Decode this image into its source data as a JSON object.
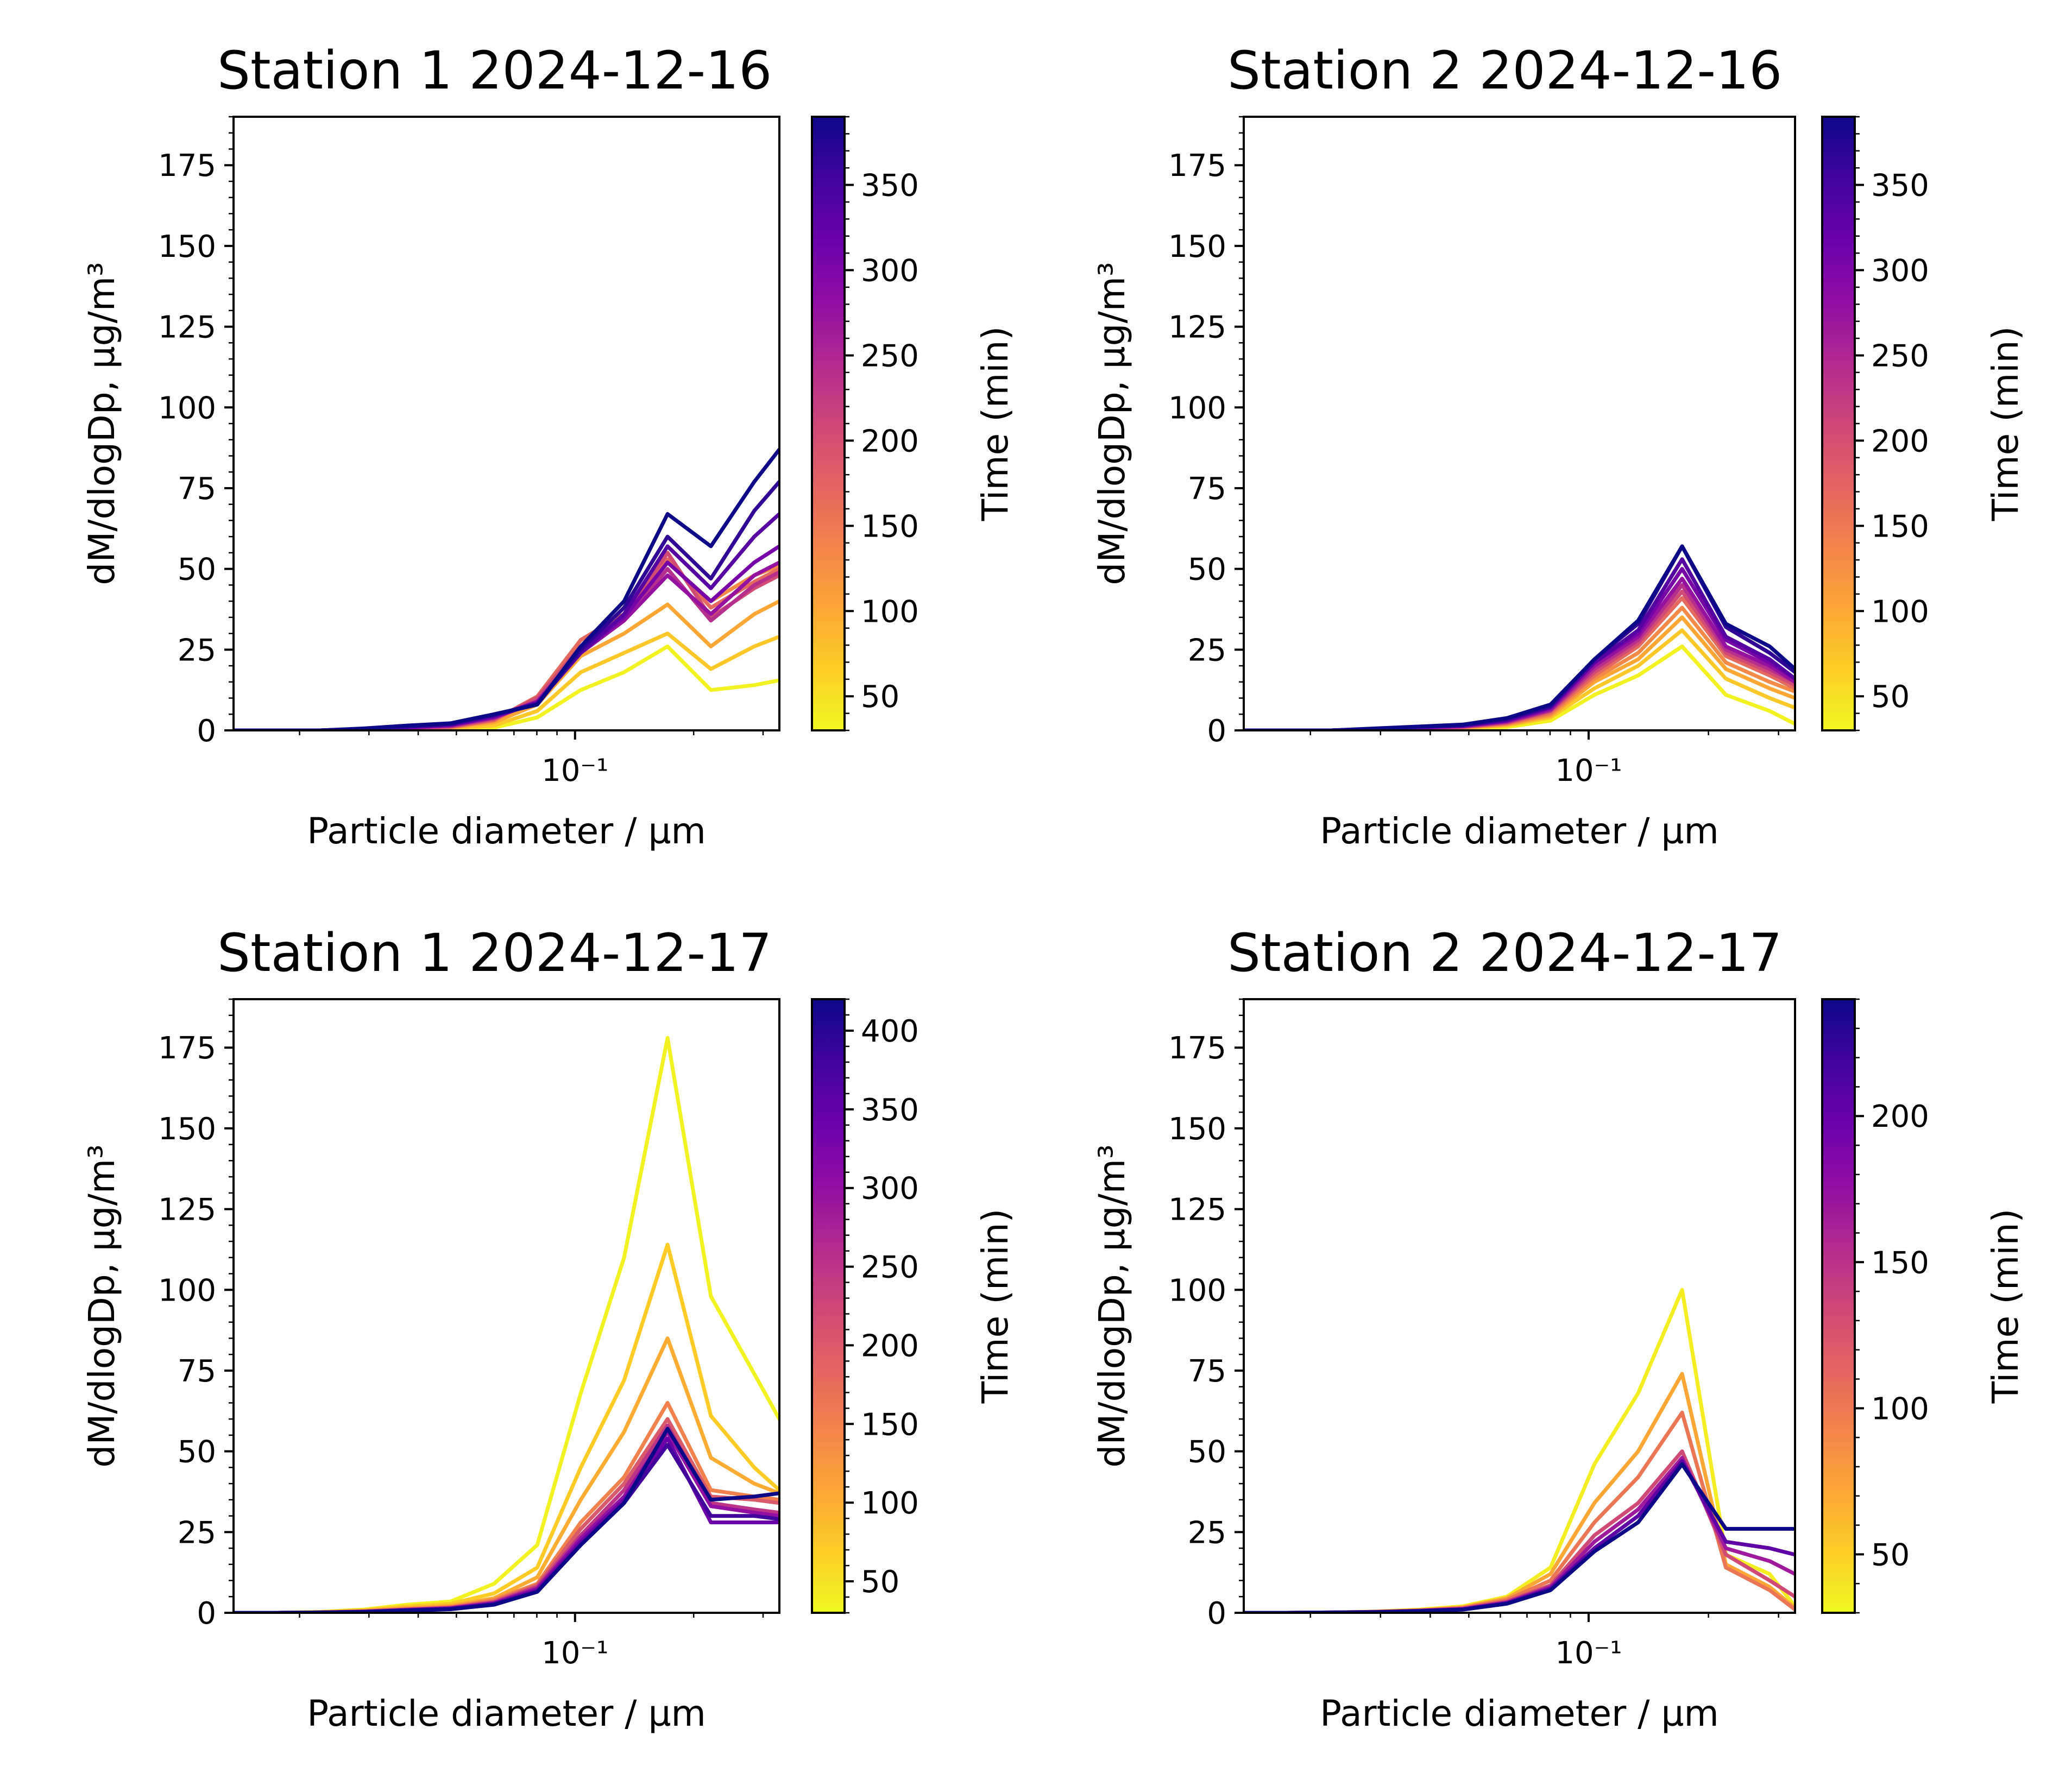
{
  "chart_data": [
    {
      "type": "line",
      "title": "Station 1 2024-12-16",
      "xlabel": "Particle diameter / µm",
      "ylabel": "dM/dlogDp, µg/m³",
      "xscale": "log",
      "xlim": [
        0.0136,
        0.33
      ],
      "ylim": [
        0,
        190
      ],
      "yticks": [
        0,
        25,
        50,
        75,
        100,
        125,
        150,
        175
      ],
      "xtick_label": "10⁻¹",
      "colorbar": {
        "label": "Time (min)",
        "cmap": "plasma_r",
        "range": [
          30,
          390
        ],
        "ticks": [
          50,
          100,
          150,
          200,
          250,
          300,
          350
        ]
      },
      "x": [
        0.0136,
        0.0175,
        0.0226,
        0.0291,
        0.0375,
        0.0483,
        0.0623,
        0.0802,
        0.1034,
        0.1332,
        0.1717,
        0.2212,
        0.285,
        0.33
      ],
      "series": [
        {
          "time": 36,
          "values": [
            0,
            0,
            0,
            0.1,
            0.2,
            0.3,
            0.8,
            4,
            12.5,
            18,
            26,
            12.5,
            14,
            15.5
          ]
        },
        {
          "time": 72,
          "values": [
            0,
            0,
            0,
            0.1,
            0.3,
            0.5,
            1.5,
            6,
            18,
            24,
            30,
            19,
            26,
            29
          ]
        },
        {
          "time": 102,
          "values": [
            0,
            0,
            0,
            0.2,
            0.4,
            0.8,
            2.5,
            8,
            23,
            30,
            39,
            26,
            36,
            40
          ]
        },
        {
          "time": 132,
          "values": [
            0,
            0,
            0,
            0.2,
            0.5,
            1.0,
            3.0,
            10,
            28,
            36,
            52,
            40,
            48,
            51
          ]
        },
        {
          "time": 168,
          "values": [
            0,
            0,
            0,
            0.2,
            0.5,
            1.0,
            3.2,
            10.5,
            28,
            36,
            53,
            38,
            46,
            50
          ]
        },
        {
          "time": 204,
          "values": [
            0,
            0,
            0,
            0.3,
            0.6,
            1.2,
            3.5,
            10,
            26,
            35,
            55,
            35,
            44,
            48
          ]
        },
        {
          "time": 240,
          "values": [
            0,
            0,
            0,
            0.3,
            0.7,
            1.4,
            3.8,
            9,
            25,
            34,
            50,
            34,
            45,
            49
          ]
        },
        {
          "time": 276,
          "values": [
            0,
            0,
            0,
            0.3,
            0.8,
            1.5,
            4.0,
            9,
            24,
            34,
            48,
            36,
            48,
            52
          ]
        },
        {
          "time": 306,
          "values": [
            0,
            0,
            0,
            0.4,
            0.9,
            1.7,
            4.2,
            8.5,
            24,
            35,
            52,
            40,
            52,
            57
          ]
        },
        {
          "time": 336,
          "values": [
            0,
            0,
            0,
            0.4,
            1.0,
            1.8,
            4.5,
            8.5,
            24,
            36,
            57,
            44,
            60,
            67
          ]
        },
        {
          "time": 366,
          "values": [
            0,
            0,
            0,
            0.5,
            1.2,
            2.0,
            4.8,
            8,
            25,
            38,
            60,
            47,
            68,
            77
          ]
        },
        {
          "time": 390,
          "values": [
            0,
            0,
            0,
            0.6,
            1.5,
            2.2,
            5.0,
            8,
            26,
            40,
            67,
            57,
            77,
            87
          ]
        }
      ]
    },
    {
      "type": "line",
      "title": "Station 2 2024-12-16",
      "xlabel": "Particle diameter / µm",
      "ylabel": "dM/dlogDp, µg/m³",
      "xscale": "log",
      "xlim": [
        0.0136,
        0.33
      ],
      "ylim": [
        0,
        190
      ],
      "yticks": [
        0,
        25,
        50,
        75,
        100,
        125,
        150,
        175
      ],
      "xtick_label": "10⁻¹",
      "colorbar": {
        "label": "Time (min)",
        "cmap": "plasma_r",
        "range": [
          30,
          390
        ],
        "ticks": [
          50,
          100,
          150,
          200,
          250,
          300,
          350
        ]
      },
      "x": [
        0.0136,
        0.0175,
        0.0226,
        0.0291,
        0.0375,
        0.0483,
        0.0623,
        0.0802,
        0.1034,
        0.1332,
        0.1717,
        0.2212,
        0.285,
        0.33
      ],
      "series": [
        {
          "time": 36,
          "values": [
            0,
            0,
            0,
            0.1,
            0.2,
            0.4,
            1.0,
            3.0,
            11,
            17,
            26,
            11,
            6,
            2
          ]
        },
        {
          "time": 72,
          "values": [
            0,
            0,
            0,
            0.1,
            0.3,
            0.6,
            1.5,
            4.0,
            13,
            20,
            31,
            16,
            10,
            7
          ]
        },
        {
          "time": 102,
          "values": [
            0,
            0,
            0,
            0.2,
            0.4,
            0.8,
            1.8,
            4.5,
            15,
            22,
            35,
            19,
            13,
            10
          ]
        },
        {
          "time": 132,
          "values": [
            0,
            0,
            0,
            0.2,
            0.5,
            0.9,
            2.0,
            5.0,
            16,
            24,
            38,
            21,
            15,
            12
          ]
        },
        {
          "time": 168,
          "values": [
            0,
            0,
            0,
            0.2,
            0.5,
            1.0,
            2.2,
            5.5,
            17,
            26,
            41,
            23,
            17,
            13
          ]
        },
        {
          "time": 204,
          "values": [
            0,
            0,
            0,
            0.3,
            0.6,
            1.1,
            2.4,
            6.0,
            18,
            27,
            43,
            24,
            18,
            14
          ]
        },
        {
          "time": 240,
          "values": [
            0,
            0,
            0,
            0.3,
            0.7,
            1.2,
            2.6,
            6.2,
            19,
            28,
            45,
            25,
            19,
            15
          ]
        },
        {
          "time": 276,
          "values": [
            0,
            0,
            0,
            0.3,
            0.8,
            1.3,
            2.8,
            6.5,
            20,
            29,
            47,
            26,
            20,
            15
          ]
        },
        {
          "time": 306,
          "values": [
            0,
            0,
            0,
            0.4,
            0.9,
            1.4,
            3.0,
            7.0,
            21,
            30,
            50,
            28,
            21,
            16
          ]
        },
        {
          "time": 336,
          "values": [
            0,
            0,
            0,
            0.4,
            1.0,
            1.5,
            3.2,
            7.2,
            21,
            31,
            53,
            29,
            22,
            16
          ]
        },
        {
          "time": 366,
          "values": [
            0,
            0,
            0,
            0.5,
            1.1,
            1.6,
            3.5,
            7.5,
            22,
            33,
            57,
            32,
            24,
            18
          ]
        },
        {
          "time": 390,
          "values": [
            0,
            0,
            0,
            0.6,
            1.2,
            1.8,
            3.8,
            8.0,
            22,
            34,
            57,
            33,
            26,
            19
          ]
        }
      ]
    },
    {
      "type": "line",
      "title": "Station 1 2024-12-17",
      "xlabel": "Particle diameter / µm",
      "ylabel": "dM/dlogDp, µg/m³",
      "xscale": "log",
      "xlim": [
        0.0136,
        0.33
      ],
      "ylim": [
        0,
        190
      ],
      "yticks": [
        0,
        25,
        50,
        75,
        100,
        125,
        150,
        175
      ],
      "xtick_label": "10⁻¹",
      "colorbar": {
        "label": "Time (min)",
        "cmap": "plasma_r",
        "range": [
          30,
          420
        ],
        "ticks": [
          50,
          100,
          150,
          200,
          250,
          300,
          350,
          400
        ]
      },
      "x": [
        0.0136,
        0.0175,
        0.0226,
        0.0291,
        0.0375,
        0.0483,
        0.0623,
        0.0802,
        0.1034,
        0.1332,
        0.1717,
        0.2212,
        0.285,
        0.33
      ],
      "series": [
        {
          "time": 36,
          "values": [
            0,
            0,
            0.3,
            1.0,
            2.5,
            3.5,
            9,
            21,
            68,
            110,
            178,
            98,
            74,
            60
          ]
        },
        {
          "time": 72,
          "values": [
            0,
            0,
            0.2,
            0.8,
            2.0,
            2.8,
            6,
            14,
            45,
            72,
            114,
            61,
            45,
            38
          ]
        },
        {
          "time": 102,
          "values": [
            0,
            0,
            0.2,
            0.6,
            1.5,
            2.2,
            4.5,
            11,
            35,
            56,
            85,
            48,
            40,
            37
          ]
        },
        {
          "time": 150,
          "values": [
            0,
            0,
            0.1,
            0.5,
            1.2,
            1.8,
            4.0,
            9,
            28,
            42,
            65,
            38,
            36,
            35
          ]
        },
        {
          "time": 200,
          "values": [
            0,
            0,
            0.1,
            0.4,
            1.0,
            1.6,
            3.5,
            8.5,
            26,
            40,
            60,
            36,
            35,
            34
          ]
        },
        {
          "time": 250,
          "values": [
            0,
            0,
            0.1,
            0.4,
            1.0,
            1.5,
            3.2,
            8,
            24,
            38,
            58,
            34,
            32,
            31
          ]
        },
        {
          "time": 300,
          "values": [
            0,
            0,
            0.1,
            0.3,
            0.9,
            1.4,
            3.0,
            7.5,
            23,
            36,
            56,
            33,
            31,
            30
          ]
        },
        {
          "time": 340,
          "values": [
            0,
            0,
            0.1,
            0.3,
            0.8,
            1.3,
            2.8,
            7.0,
            22,
            35,
            54,
            28,
            28,
            28
          ]
        },
        {
          "time": 380,
          "values": [
            0,
            0,
            0.1,
            0.3,
            0.8,
            1.2,
            2.6,
            6.5,
            21,
            34,
            52,
            30,
            30,
            29
          ]
        },
        {
          "time": 420,
          "values": [
            0,
            0,
            0.1,
            0.3,
            0.7,
            1.1,
            2.5,
            6.5,
            21,
            34,
            57,
            35,
            36,
            37
          ]
        }
      ]
    },
    {
      "type": "line",
      "title": "Station 2 2024-12-17",
      "xlabel": "Particle diameter / µm",
      "ylabel": "dM/dlogDp, µg/m³",
      "xscale": "log",
      "xlim": [
        0.0136,
        0.33
      ],
      "ylim": [
        0,
        190
      ],
      "yticks": [
        0,
        25,
        50,
        75,
        100,
        125,
        150,
        175
      ],
      "xtick_label": "10⁻¹",
      "colorbar": {
        "label": "Time (min)",
        "cmap": "plasma_r",
        "range": [
          30,
          240
        ],
        "ticks": [
          50,
          100,
          150,
          200
        ]
      },
      "x": [
        0.0136,
        0.0175,
        0.0226,
        0.0291,
        0.0375,
        0.0483,
        0.0623,
        0.0802,
        0.1034,
        0.1332,
        0.1717,
        0.2212,
        0.285,
        0.33
      ],
      "series": [
        {
          "time": 36,
          "values": [
            0,
            0,
            0.1,
            0.4,
            1.0,
            2.0,
            5,
            14,
            46,
            68,
            100,
            18,
            12,
            2
          ]
        },
        {
          "time": 72,
          "values": [
            0,
            0,
            0.1,
            0.3,
            0.8,
            1.7,
            4.5,
            12,
            34,
            50,
            74,
            15,
            8,
            1.5
          ]
        },
        {
          "time": 102,
          "values": [
            0,
            0,
            0.1,
            0.3,
            0.7,
            1.5,
            4.0,
            10,
            28,
            42,
            62,
            14,
            7,
            1
          ]
        },
        {
          "time": 132,
          "values": [
            0,
            0,
            0.1,
            0.3,
            0.7,
            1.3,
            3.5,
            8.5,
            24,
            34,
            50,
            18,
            10,
            5
          ]
        },
        {
          "time": 168,
          "values": [
            0,
            0,
            0.1,
            0.3,
            0.6,
            1.2,
            3.2,
            8,
            22,
            32,
            48,
            20,
            16,
            12
          ]
        },
        {
          "time": 204,
          "values": [
            0,
            0,
            0.1,
            0.2,
            0.6,
            1.1,
            3.0,
            7.5,
            20,
            30,
            47,
            22,
            20,
            18
          ]
        },
        {
          "time": 240,
          "values": [
            0,
            0,
            0.1,
            0.2,
            0.5,
            1.0,
            2.8,
            7,
            19,
            28,
            46,
            26,
            26,
            26
          ]
        }
      ]
    }
  ]
}
